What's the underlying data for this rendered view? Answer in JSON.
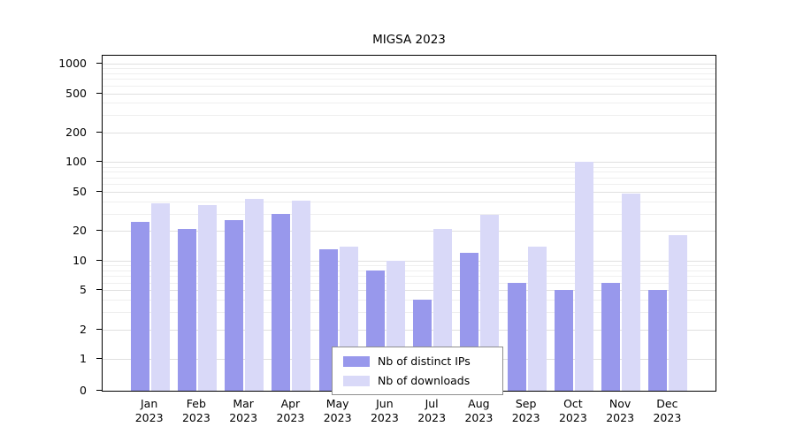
{
  "chart_data": {
    "type": "bar",
    "title": "MIGSA 2023",
    "categories": [
      "Jan",
      "Feb",
      "Mar",
      "Apr",
      "May",
      "Jun",
      "Jul",
      "Aug",
      "Sep",
      "Oct",
      "Nov",
      "Dec"
    ],
    "year_label": "2023",
    "series": [
      {
        "name": "Nb of distinct IPs",
        "color": "#9898ec",
        "values": [
          25,
          21,
          26,
          30,
          13,
          8,
          4,
          12,
          6,
          5,
          6,
          5
        ]
      },
      {
        "name": "Nb of downloads",
        "color": "#d9d9f8",
        "values": [
          38,
          37,
          42,
          41,
          14,
          10,
          21,
          29,
          14,
          100,
          48,
          18
        ]
      }
    ],
    "y_ticks": [
      0,
      1,
      2,
      5,
      10,
      20,
      50,
      100,
      200,
      500,
      1000
    ],
    "ylim": [
      0,
      1000
    ],
    "y_scale": "log",
    "xlabel": "",
    "ylabel": "",
    "grid": true,
    "legend_position": "bottom-center",
    "colors": {
      "axis": "#000000",
      "grid_major": "#e0e0e0",
      "grid_minor": "#efefef",
      "background": "#ffffff"
    }
  }
}
